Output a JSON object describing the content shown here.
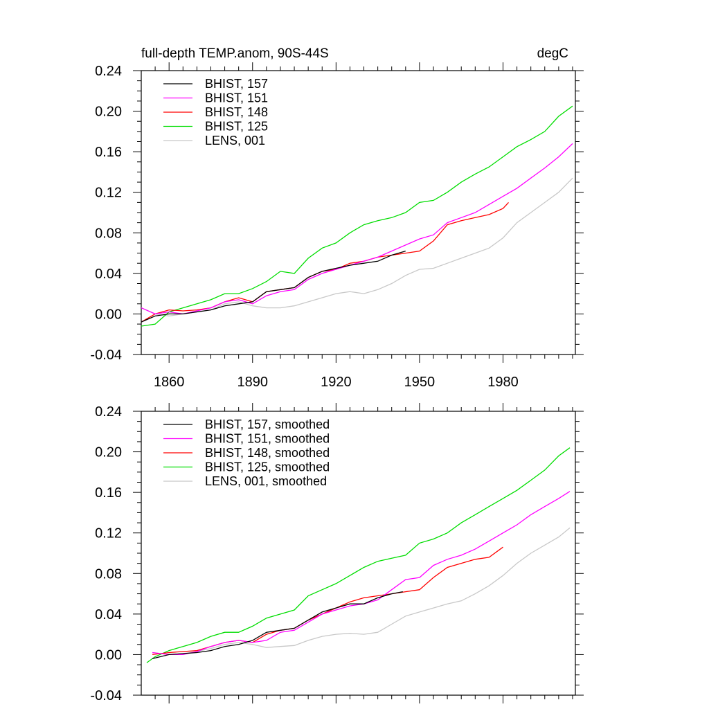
{
  "figure": {
    "title_left": "full-depth TEMP.anom, 90S-44S",
    "title_right": "degC"
  },
  "chart_data": [
    {
      "type": "line",
      "xlim": [
        1850,
        2006
      ],
      "ylim": [
        -0.04,
        0.24
      ],
      "xticks": [
        1860,
        1890,
        1920,
        1950,
        1980
      ],
      "xtick_labels_shown": true,
      "yticks": [
        -0.04,
        0.0,
        0.04,
        0.08,
        0.12,
        0.16,
        0.2,
        0.24
      ],
      "ytick_labels": [
        "-0.04",
        "0.00",
        "0.04",
        "0.08",
        "0.12",
        "0.16",
        "0.20",
        "0.24"
      ],
      "grid": false,
      "legend_position": "top-left",
      "series": [
        {
          "name": "LENS, 001",
          "color": "#c8c8c8",
          "x": [
            1850,
            1855,
            1860,
            1865,
            1870,
            1875,
            1880,
            1885,
            1890,
            1895,
            1900,
            1905,
            1910,
            1915,
            1920,
            1925,
            1930,
            1935,
            1940,
            1945,
            1950,
            1955,
            1960,
            1965,
            1970,
            1975,
            1980,
            1985,
            1990,
            1995,
            2000,
            2005
          ],
          "y": [
            0.006,
            0.0,
            -0.002,
            0.0,
            0.002,
            0.004,
            0.01,
            0.012,
            0.008,
            0.006,
            0.006,
            0.008,
            0.012,
            0.016,
            0.02,
            0.022,
            0.02,
            0.024,
            0.03,
            0.038,
            0.044,
            0.045,
            0.05,
            0.055,
            0.06,
            0.065,
            0.075,
            0.09,
            0.1,
            0.11,
            0.12,
            0.134
          ]
        },
        {
          "name": "BHIST, 125",
          "color": "#00dd00",
          "x": [
            1850,
            1855,
            1860,
            1865,
            1870,
            1875,
            1880,
            1885,
            1890,
            1895,
            1900,
            1905,
            1910,
            1915,
            1920,
            1925,
            1930,
            1935,
            1940,
            1945,
            1950,
            1955,
            1960,
            1965,
            1970,
            1975,
            1980,
            1985,
            1990,
            1995,
            2000,
            2005
          ],
          "y": [
            -0.012,
            -0.01,
            0.002,
            0.006,
            0.01,
            0.014,
            0.02,
            0.02,
            0.025,
            0.032,
            0.042,
            0.04,
            0.055,
            0.065,
            0.07,
            0.08,
            0.088,
            0.092,
            0.095,
            0.1,
            0.11,
            0.112,
            0.12,
            0.13,
            0.138,
            0.145,
            0.155,
            0.165,
            0.172,
            0.18,
            0.195,
            0.205
          ]
        },
        {
          "name": "BHIST, 148",
          "color": "#ff0000",
          "x": [
            1850,
            1855,
            1860,
            1865,
            1870,
            1875,
            1880,
            1885,
            1890,
            1895,
            1900,
            1905,
            1910,
            1915,
            1920,
            1925,
            1930,
            1935,
            1940,
            1945,
            1950,
            1955,
            1960,
            1965,
            1970,
            1975,
            1980,
            1982
          ],
          "y": [
            -0.008,
            0.0,
            0.004,
            0.003,
            0.004,
            0.006,
            0.012,
            0.016,
            0.012,
            0.022,
            0.024,
            0.026,
            0.036,
            0.042,
            0.044,
            0.05,
            0.052,
            0.056,
            0.058,
            0.06,
            0.062,
            0.072,
            0.088,
            0.092,
            0.095,
            0.098,
            0.104,
            0.11
          ]
        },
        {
          "name": "BHIST, 151",
          "color": "#ff00ff",
          "x": [
            1850,
            1855,
            1860,
            1865,
            1870,
            1875,
            1880,
            1885,
            1890,
            1895,
            1900,
            1905,
            1910,
            1915,
            1920,
            1925,
            1930,
            1935,
            1940,
            1945,
            1950,
            1955,
            1960,
            1965,
            1970,
            1975,
            1980,
            1985,
            1990,
            1995,
            2000,
            2005
          ],
          "y": [
            0.006,
            0.0,
            0.002,
            0.0,
            0.003,
            0.006,
            0.012,
            0.014,
            0.01,
            0.018,
            0.022,
            0.024,
            0.034,
            0.04,
            0.044,
            0.048,
            0.052,
            0.056,
            0.062,
            0.068,
            0.074,
            0.078,
            0.09,
            0.095,
            0.1,
            0.108,
            0.116,
            0.124,
            0.134,
            0.144,
            0.155,
            0.168
          ]
        },
        {
          "name": "BHIST, 157",
          "color": "#000000",
          "x": [
            1850,
            1855,
            1860,
            1865,
            1870,
            1875,
            1880,
            1885,
            1890,
            1895,
            1900,
            1905,
            1910,
            1915,
            1920,
            1925,
            1930,
            1935,
            1940,
            1945
          ],
          "y": [
            -0.008,
            -0.002,
            0.0,
            0.0,
            0.002,
            0.004,
            0.008,
            0.01,
            0.012,
            0.022,
            0.024,
            0.026,
            0.036,
            0.042,
            0.045,
            0.048,
            0.05,
            0.052,
            0.058,
            0.062
          ]
        }
      ],
      "legend": [
        "BHIST, 157",
        "BHIST, 151",
        "BHIST, 148",
        "BHIST, 125",
        "LENS, 001"
      ]
    },
    {
      "type": "line",
      "xlim": [
        1850,
        2006
      ],
      "ylim": [
        -0.04,
        0.24
      ],
      "xticks": [
        1860,
        1890,
        1920,
        1950,
        1980
      ],
      "xtick_labels_shown": false,
      "yticks": [
        -0.04,
        0.0,
        0.04,
        0.08,
        0.12,
        0.16,
        0.2,
        0.24
      ],
      "ytick_labels": [
        "-0.04",
        "0.00",
        "0.04",
        "0.08",
        "0.12",
        "0.16",
        "0.20",
        "0.24"
      ],
      "grid": false,
      "legend_position": "top-left",
      "series": [
        {
          "name": "LENS, 001, smoothed",
          "color": "#c8c8c8",
          "x": [
            1854,
            1860,
            1865,
            1870,
            1875,
            1880,
            1885,
            1890,
            1895,
            1900,
            1905,
            1910,
            1915,
            1920,
            1925,
            1930,
            1935,
            1940,
            1945,
            1950,
            1955,
            1960,
            1965,
            1970,
            1975,
            1980,
            1985,
            1990,
            1995,
            2000,
            2004
          ],
          "y": [
            0.002,
            0.0,
            0.001,
            0.003,
            0.006,
            0.01,
            0.012,
            0.01,
            0.007,
            0.008,
            0.009,
            0.014,
            0.018,
            0.02,
            0.021,
            0.02,
            0.022,
            0.03,
            0.038,
            0.042,
            0.046,
            0.05,
            0.053,
            0.06,
            0.068,
            0.078,
            0.09,
            0.1,
            0.108,
            0.116,
            0.125
          ]
        },
        {
          "name": "BHIST, 125, smoothed",
          "color": "#00dd00",
          "x": [
            1852,
            1855,
            1860,
            1865,
            1870,
            1875,
            1880,
            1885,
            1890,
            1895,
            1900,
            1905,
            1910,
            1915,
            1920,
            1925,
            1930,
            1935,
            1940,
            1945,
            1950,
            1955,
            1960,
            1965,
            1970,
            1975,
            1980,
            1985,
            1990,
            1995,
            2000,
            2004
          ],
          "y": [
            -0.008,
            -0.002,
            0.004,
            0.008,
            0.012,
            0.018,
            0.022,
            0.022,
            0.028,
            0.036,
            0.04,
            0.044,
            0.058,
            0.064,
            0.07,
            0.078,
            0.086,
            0.092,
            0.095,
            0.098,
            0.11,
            0.114,
            0.12,
            0.13,
            0.138,
            0.146,
            0.154,
            0.162,
            0.172,
            0.182,
            0.196,
            0.204
          ]
        },
        {
          "name": "BHIST, 148, smoothed",
          "color": "#ff0000",
          "x": [
            1854,
            1860,
            1865,
            1870,
            1875,
            1880,
            1885,
            1890,
            1895,
            1900,
            1905,
            1910,
            1915,
            1920,
            1925,
            1930,
            1935,
            1940,
            1945,
            1950,
            1955,
            1960,
            1965,
            1970,
            1975,
            1980
          ],
          "y": [
            0.0,
            0.002,
            0.003,
            0.004,
            0.008,
            0.012,
            0.014,
            0.012,
            0.02,
            0.024,
            0.026,
            0.034,
            0.04,
            0.046,
            0.052,
            0.056,
            0.058,
            0.06,
            0.062,
            0.064,
            0.076,
            0.086,
            0.09,
            0.094,
            0.096,
            0.106
          ]
        },
        {
          "name": "BHIST, 151, smoothed",
          "color": "#ff00ff",
          "x": [
            1854,
            1860,
            1865,
            1870,
            1875,
            1880,
            1885,
            1890,
            1895,
            1900,
            1905,
            1910,
            1915,
            1920,
            1925,
            1930,
            1935,
            1940,
            1945,
            1950,
            1955,
            1960,
            1965,
            1970,
            1975,
            1980,
            1985,
            1990,
            1995,
            2000,
            2004
          ],
          "y": [
            0.002,
            0.0,
            0.0,
            0.003,
            0.008,
            0.012,
            0.014,
            0.012,
            0.014,
            0.022,
            0.024,
            0.032,
            0.04,
            0.044,
            0.048,
            0.05,
            0.054,
            0.064,
            0.074,
            0.076,
            0.088,
            0.094,
            0.098,
            0.104,
            0.112,
            0.12,
            0.128,
            0.138,
            0.146,
            0.154,
            0.161
          ]
        },
        {
          "name": "BHIST, 157, smoothed",
          "color": "#000000",
          "x": [
            1854,
            1860,
            1865,
            1870,
            1875,
            1880,
            1885,
            1890,
            1895,
            1900,
            1905,
            1910,
            1915,
            1920,
            1925,
            1930,
            1935,
            1940,
            1944
          ],
          "y": [
            -0.004,
            0.0,
            0.001,
            0.002,
            0.004,
            0.008,
            0.01,
            0.014,
            0.022,
            0.024,
            0.026,
            0.034,
            0.042,
            0.046,
            0.05,
            0.05,
            0.056,
            0.06,
            0.062
          ]
        }
      ],
      "legend": [
        "BHIST, 157, smoothed",
        "BHIST, 151, smoothed",
        "BHIST, 148, smoothed",
        "BHIST, 125, smoothed",
        "LENS, 001, smoothed"
      ]
    }
  ]
}
